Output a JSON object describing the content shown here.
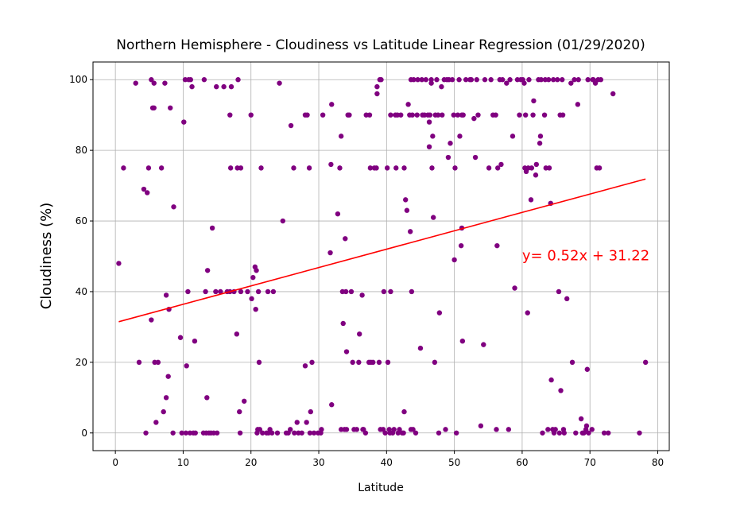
{
  "chart_data": {
    "type": "scatter",
    "title": "Northern Hemisphere - Cloudiness vs Latitude Linear Regression (01/29/2020)",
    "xlabel": "Latitude",
    "ylabel": "Cloudiness (%)",
    "xlim": [
      -3.3,
      81.7
    ],
    "ylim": [
      -5,
      105
    ],
    "xticks": [
      0,
      10,
      20,
      30,
      40,
      50,
      60,
      70,
      80
    ],
    "yticks": [
      0,
      20,
      40,
      60,
      80,
      100
    ],
    "grid": true,
    "colors": {
      "points": "#800080",
      "regression": "#ff0000",
      "annotation": "#ff0000",
      "grid": "#b0b0b0"
    },
    "regression": {
      "slope": 0.52,
      "intercept": 31.22,
      "x_start": 0.5,
      "x_end": 78.2
    },
    "annotation": {
      "text": "y= 0.52x + 31.22",
      "x": 60,
      "y": 50.5
    },
    "points": [
      [
        0.5,
        48
      ],
      [
        1.2,
        75
      ],
      [
        3,
        99
      ],
      [
        3.5,
        20
      ],
      [
        4.2,
        69
      ],
      [
        4.5,
        0
      ],
      [
        4.7,
        68
      ],
      [
        4.9,
        75
      ],
      [
        5.3,
        32
      ],
      [
        5.3,
        100
      ],
      [
        5.5,
        92
      ],
      [
        5.7,
        92
      ],
      [
        5.7,
        99
      ],
      [
        5.8,
        20
      ],
      [
        6,
        3
      ],
      [
        6.3,
        20
      ],
      [
        6.8,
        75
      ],
      [
        7.1,
        6
      ],
      [
        7.3,
        99
      ],
      [
        7.5,
        39
      ],
      [
        7.5,
        10
      ],
      [
        7.8,
        16
      ],
      [
        7.9,
        35
      ],
      [
        8.1,
        92
      ],
      [
        8.5,
        0
      ],
      [
        8.6,
        64
      ],
      [
        9.6,
        27
      ],
      [
        9.8,
        0
      ],
      [
        10.1,
        88
      ],
      [
        10.3,
        100
      ],
      [
        10.4,
        0
      ],
      [
        10.5,
        19
      ],
      [
        10.7,
        40
      ],
      [
        10.8,
        100
      ],
      [
        11,
        0
      ],
      [
        11.1,
        100
      ],
      [
        11.3,
        98
      ],
      [
        11.5,
        0
      ],
      [
        11.7,
        26
      ],
      [
        11.8,
        0
      ],
      [
        13,
        0
      ],
      [
        13.1,
        100
      ],
      [
        13.3,
        40
      ],
      [
        13.4,
        0
      ],
      [
        13.5,
        10
      ],
      [
        13.6,
        46
      ],
      [
        13.8,
        0
      ],
      [
        14.1,
        0
      ],
      [
        14.3,
        58
      ],
      [
        14.5,
        0
      ],
      [
        14.8,
        40
      ],
      [
        14.9,
        98
      ],
      [
        15,
        0
      ],
      [
        15.5,
        40
      ],
      [
        16,
        98
      ],
      [
        16.5,
        40
      ],
      [
        16.9,
        40
      ],
      [
        16.9,
        90
      ],
      [
        17,
        75
      ],
      [
        17.1,
        98
      ],
      [
        17.5,
        40
      ],
      [
        17.9,
        28
      ],
      [
        18,
        75
      ],
      [
        18.1,
        100
      ],
      [
        18.3,
        6
      ],
      [
        18.4,
        0
      ],
      [
        18.5,
        75
      ],
      [
        18.5,
        40
      ],
      [
        19,
        9
      ],
      [
        19.5,
        40
      ],
      [
        20,
        90
      ],
      [
        20.1,
        38
      ],
      [
        20.3,
        44
      ],
      [
        20.6,
        47
      ],
      [
        20.7,
        35
      ],
      [
        20.8,
        46
      ],
      [
        20.9,
        0
      ],
      [
        21,
        1
      ],
      [
        21.1,
        40
      ],
      [
        21.2,
        20
      ],
      [
        21.3,
        1
      ],
      [
        21.5,
        75
      ],
      [
        21.7,
        0
      ],
      [
        22.3,
        0
      ],
      [
        22.5,
        40
      ],
      [
        22.6,
        0
      ],
      [
        22.8,
        1
      ],
      [
        23.1,
        0
      ],
      [
        23.3,
        40
      ],
      [
        23.9,
        0
      ],
      [
        24.2,
        99
      ],
      [
        24.7,
        60
      ],
      [
        25.2,
        0
      ],
      [
        25.5,
        0
      ],
      [
        25.8,
        1
      ],
      [
        25.9,
        87
      ],
      [
        26.3,
        75
      ],
      [
        26.4,
        0
      ],
      [
        26.8,
        3
      ],
      [
        27,
        0
      ],
      [
        27.5,
        0
      ],
      [
        28,
        19
      ],
      [
        28,
        90
      ],
      [
        28.2,
        3
      ],
      [
        28.3,
        90
      ],
      [
        28.6,
        75
      ],
      [
        28.7,
        0
      ],
      [
        28.8,
        6
      ],
      [
        29,
        20
      ],
      [
        29.3,
        0
      ],
      [
        29.9,
        0
      ],
      [
        30.3,
        0
      ],
      [
        30.4,
        1
      ],
      [
        30.6,
        90
      ],
      [
        31.7,
        51
      ],
      [
        31.8,
        76
      ],
      [
        31.9,
        8
      ],
      [
        31.9,
        93
      ],
      [
        32.8,
        62
      ],
      [
        33.1,
        75
      ],
      [
        33.3,
        1
      ],
      [
        33.3,
        84
      ],
      [
        33.5,
        40
      ],
      [
        33.6,
        31
      ],
      [
        33.8,
        1
      ],
      [
        33.9,
        55
      ],
      [
        34,
        40
      ],
      [
        34.1,
        23
      ],
      [
        34.1,
        1
      ],
      [
        34.3,
        90
      ],
      [
        34.5,
        90
      ],
      [
        34.8,
        40
      ],
      [
        35,
        20
      ],
      [
        35.2,
        1
      ],
      [
        35.6,
        1
      ],
      [
        35.9,
        20
      ],
      [
        36,
        28
      ],
      [
        36.4,
        39
      ],
      [
        36.5,
        1
      ],
      [
        36.6,
        1
      ],
      [
        36.9,
        0
      ],
      [
        37,
        90
      ],
      [
        37.4,
        20
      ],
      [
        37.5,
        90
      ],
      [
        37.6,
        75
      ],
      [
        37.7,
        20
      ],
      [
        38,
        20
      ],
      [
        38.2,
        75
      ],
      [
        38.5,
        75
      ],
      [
        38.6,
        98
      ],
      [
        38.6,
        96
      ],
      [
        38.9,
        20
      ],
      [
        39,
        100
      ],
      [
        39.1,
        1
      ],
      [
        39.2,
        100
      ],
      [
        39.5,
        1
      ],
      [
        39.6,
        40
      ],
      [
        39.8,
        0
      ],
      [
        40.1,
        75
      ],
      [
        40.2,
        20
      ],
      [
        40.4,
        1
      ],
      [
        40.5,
        0
      ],
      [
        40.6,
        40
      ],
      [
        40.6,
        90
      ],
      [
        40.9,
        0
      ],
      [
        41.1,
        1
      ],
      [
        41.3,
        90
      ],
      [
        41.4,
        75
      ],
      [
        41.6,
        90
      ],
      [
        41.7,
        0
      ],
      [
        41.9,
        1
      ],
      [
        42.1,
        90
      ],
      [
        42.3,
        0
      ],
      [
        42.5,
        0
      ],
      [
        42.6,
        6
      ],
      [
        42.6,
        75
      ],
      [
        42.8,
        66
      ],
      [
        43,
        63
      ],
      [
        43.2,
        93
      ],
      [
        43.4,
        90
      ],
      [
        43.5,
        57
      ],
      [
        43.6,
        100
      ],
      [
        43.6,
        1
      ],
      [
        43.7,
        40
      ],
      [
        43.8,
        90
      ],
      [
        43.9,
        1
      ],
      [
        44,
        100
      ],
      [
        44.3,
        0
      ],
      [
        44.5,
        90
      ],
      [
        44.6,
        100
      ],
      [
        45,
        24
      ],
      [
        45.2,
        100
      ],
      [
        45.3,
        90
      ],
      [
        45.6,
        90
      ],
      [
        45.8,
        100
      ],
      [
        46.1,
        90
      ],
      [
        46.3,
        88
      ],
      [
        46.3,
        81
      ],
      [
        46.4,
        90
      ],
      [
        46.6,
        100
      ],
      [
        46.6,
        99
      ],
      [
        46.7,
        75
      ],
      [
        46.8,
        84
      ],
      [
        46.9,
        61
      ],
      [
        47.1,
        20
      ],
      [
        47.2,
        90
      ],
      [
        47.4,
        100
      ],
      [
        47.6,
        90
      ],
      [
        47.7,
        0
      ],
      [
        47.8,
        34
      ],
      [
        48.1,
        98
      ],
      [
        48.2,
        90
      ],
      [
        48.5,
        100
      ],
      [
        48.7,
        1
      ],
      [
        48.9,
        100
      ],
      [
        49.1,
        78
      ],
      [
        49.2,
        100
      ],
      [
        49.4,
        82
      ],
      [
        49.7,
        100
      ],
      [
        49.9,
        90
      ],
      [
        50,
        49
      ],
      [
        50.1,
        75
      ],
      [
        50.3,
        0
      ],
      [
        50.5,
        90
      ],
      [
        50.7,
        100
      ],
      [
        50.8,
        84
      ],
      [
        51,
        53
      ],
      [
        51.1,
        90
      ],
      [
        51.1,
        58
      ],
      [
        51.2,
        26
      ],
      [
        51.3,
        90
      ],
      [
        51.7,
        100
      ],
      [
        52.3,
        100
      ],
      [
        52.5,
        100
      ],
      [
        52.9,
        89
      ],
      [
        53.1,
        78
      ],
      [
        53.3,
        100
      ],
      [
        53.5,
        90
      ],
      [
        53.9,
        2
      ],
      [
        54.3,
        25
      ],
      [
        54.5,
        100
      ],
      [
        55.1,
        75
      ],
      [
        55.4,
        100
      ],
      [
        55.7,
        90
      ],
      [
        56.1,
        90
      ],
      [
        56.2,
        1
      ],
      [
        56.3,
        53
      ],
      [
        56.4,
        75
      ],
      [
        56.7,
        100
      ],
      [
        56.9,
        76
      ],
      [
        57.1,
        100
      ],
      [
        57.7,
        99
      ],
      [
        58,
        1
      ],
      [
        58.2,
        100
      ],
      [
        58.6,
        84
      ],
      [
        58.9,
        41
      ],
      [
        59.3,
        100
      ],
      [
        59.6,
        90
      ],
      [
        59.8,
        100
      ],
      [
        60.1,
        100
      ],
      [
        60.3,
        99
      ],
      [
        60.4,
        75
      ],
      [
        60.5,
        90
      ],
      [
        60.6,
        74
      ],
      [
        60.8,
        34
      ],
      [
        60.9,
        75
      ],
      [
        61,
        100
      ],
      [
        61.3,
        66
      ],
      [
        61.4,
        75
      ],
      [
        61.6,
        90
      ],
      [
        61.7,
        94
      ],
      [
        62,
        73
      ],
      [
        62.1,
        76
      ],
      [
        62.4,
        100
      ],
      [
        62.6,
        82
      ],
      [
        62.7,
        84
      ],
      [
        62.8,
        100
      ],
      [
        63,
        0
      ],
      [
        63.3,
        90
      ],
      [
        63.4,
        100
      ],
      [
        63.5,
        75
      ],
      [
        63.8,
        1
      ],
      [
        63.9,
        100
      ],
      [
        64,
        75
      ],
      [
        64.2,
        65
      ],
      [
        64.3,
        15
      ],
      [
        64.5,
        1
      ],
      [
        64.6,
        100
      ],
      [
        64.7,
        0
      ],
      [
        64.9,
        1
      ],
      [
        65.2,
        100
      ],
      [
        65.4,
        40
      ],
      [
        65.5,
        0
      ],
      [
        65.6,
        90
      ],
      [
        65.7,
        12
      ],
      [
        65.9,
        100
      ],
      [
        66,
        90
      ],
      [
        66.1,
        1
      ],
      [
        66.2,
        0
      ],
      [
        66.6,
        38
      ],
      [
        67.2,
        99
      ],
      [
        67.4,
        20
      ],
      [
        67.7,
        100
      ],
      [
        67.9,
        0
      ],
      [
        68.2,
        93
      ],
      [
        68.3,
        100
      ],
      [
        68.7,
        4
      ],
      [
        68.9,
        0
      ],
      [
        69.1,
        0
      ],
      [
        69.4,
        1
      ],
      [
        69.5,
        2
      ],
      [
        69.6,
        18
      ],
      [
        69.7,
        100
      ],
      [
        69.8,
        0
      ],
      [
        70.3,
        1
      ],
      [
        70.4,
        100
      ],
      [
        70.5,
        100
      ],
      [
        70.8,
        99
      ],
      [
        71,
        75
      ],
      [
        71.2,
        100
      ],
      [
        71.4,
        75
      ],
      [
        71.6,
        100
      ],
      [
        72.1,
        0
      ],
      [
        72.7,
        0
      ],
      [
        73.4,
        96
      ],
      [
        77.3,
        0
      ],
      [
        78.2,
        20
      ]
    ]
  }
}
